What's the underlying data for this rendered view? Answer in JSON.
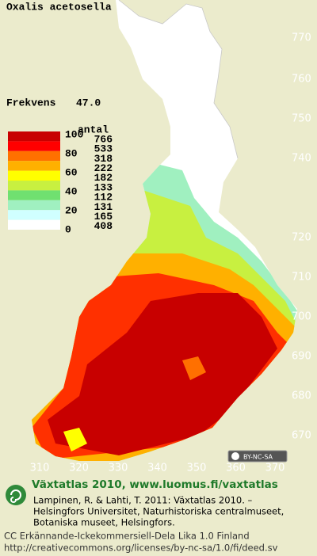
{
  "title": "Oxalis acetosella",
  "frequency": {
    "label": "Frekvens",
    "value": "47.0"
  },
  "legend": {
    "scale": [
      "100",
      "80",
      "60",
      "40",
      "20",
      "0"
    ],
    "count_header": "antal",
    "counts": [
      766,
      533,
      318,
      222,
      182,
      133,
      112,
      131,
      165,
      408
    ],
    "colors": [
      "#c80000",
      "#ff0000",
      "#ff7000",
      "#ffb000",
      "#ffff00",
      "#c8f040",
      "#70e070",
      "#a0f0c0",
      "#d0ffff",
      "#ffffff"
    ]
  },
  "grid": {
    "north": [
      "770",
      "760",
      "750",
      "740",
      "720",
      "710",
      "700",
      "690",
      "680",
      "670"
    ],
    "east": [
      "310",
      "320",
      "330",
      "340",
      "350",
      "360",
      "370"
    ]
  },
  "license_badge": "BY-NC-SA",
  "credits": {
    "heading": "Växtatlas 2010, www.luomus.fi/vaxtatlas",
    "citation": [
      "Lampinen, R. & Lahti, T. 2011: Växtatlas 2010. –",
      "Helsingfors Universitet, Naturhistoriska centralmuseet,",
      "Botaniska museet, Helsingfors."
    ],
    "license": [
      "CC Erkännande-Ickekommersiell-Dela Lika 1.0 Finland",
      "http://creativecommons.org/licenses/by-nc-sa/1.0/fi/deed.sv"
    ]
  }
}
